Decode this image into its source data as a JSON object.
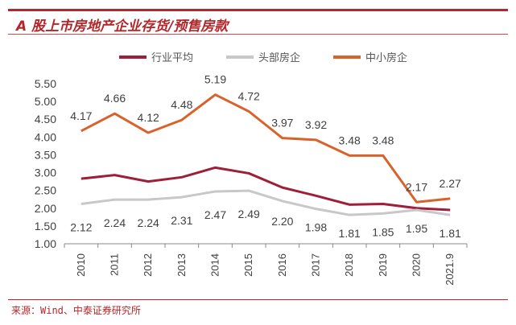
{
  "title": "A 股上市房地产企业存货/预售房款",
  "source": "来源：Wind、中泰证券研究所",
  "chart_data": {
    "type": "line",
    "categories": [
      "2010",
      "2011",
      "2012",
      "2013",
      "2014",
      "2015",
      "2016",
      "2017",
      "2018",
      "2019",
      "2020",
      "2021.9"
    ],
    "ylim": [
      1.0,
      5.5
    ],
    "yticks": [
      "1.00",
      "1.50",
      "2.00",
      "2.50",
      "3.00",
      "3.50",
      "4.00",
      "4.50",
      "5.00",
      "5.50"
    ],
    "legend_position": "top",
    "grid": false,
    "series": [
      {
        "name": "行业平均",
        "color": "#9e1f3a",
        "labeled": false,
        "values": [
          2.83,
          2.93,
          2.75,
          2.87,
          3.14,
          2.98,
          2.58,
          2.35,
          2.1,
          2.12,
          2.0,
          1.95
        ]
      },
      {
        "name": "头部房企",
        "color": "#c8c8c8",
        "labeled": true,
        "values": [
          2.12,
          2.24,
          2.24,
          2.31,
          2.47,
          2.49,
          2.2,
          1.98,
          1.81,
          1.85,
          1.95,
          1.81
        ]
      },
      {
        "name": "中小房企",
        "color": "#d9622b",
        "labeled": true,
        "values": [
          4.17,
          4.66,
          4.12,
          4.48,
          5.19,
          4.72,
          3.97,
          3.92,
          3.48,
          3.48,
          2.17,
          2.27
        ]
      }
    ]
  }
}
